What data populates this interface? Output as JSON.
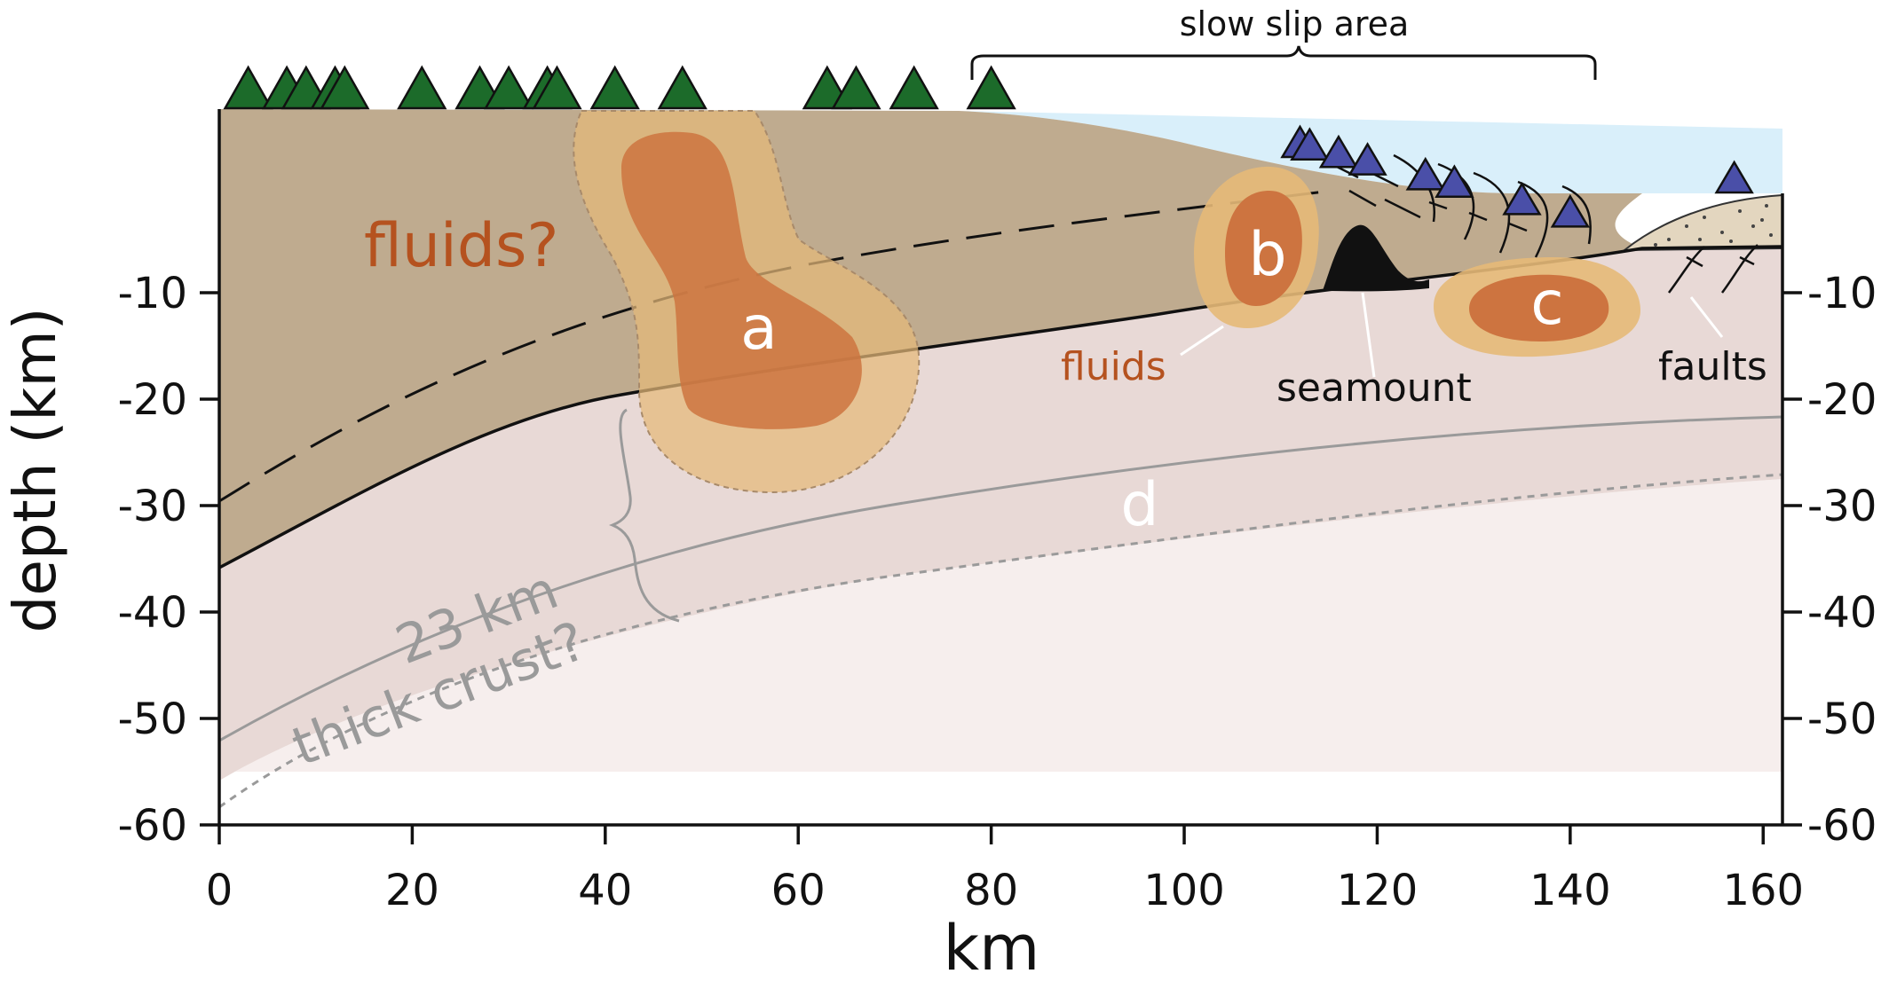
{
  "axes": {
    "x_label": "km",
    "y_label": "depth (km)",
    "x_ticks": [
      "0",
      "20",
      "40",
      "60",
      "80",
      "100",
      "120",
      "140",
      "160"
    ],
    "y_ticks_left": [
      "-10",
      "-20",
      "-30",
      "-40",
      "-50",
      "-60"
    ],
    "y_ticks_right": [
      "-10",
      "-20",
      "-30",
      "-40",
      "-50",
      "-60"
    ]
  },
  "annotations": {
    "slow_slip": "slow slip area",
    "fluids_q": "fluids?",
    "label_a": "a",
    "label_b": "b",
    "label_c": "c",
    "label_d": "d",
    "fluids": "fluids",
    "seamount": "seamount",
    "faults": "faults",
    "crust_line1": "23 km",
    "crust_line2": "thick crust?"
  },
  "colors": {
    "overriding_plate": "#bfab8f",
    "oceanic_crust": "#e8d9d6",
    "mantle": "#f6eeed",
    "ocean": "#d9effa",
    "fluid_core": "#cd7440",
    "fluid_halo": "#e5b978",
    "land_station": "#1c6b2a",
    "ocean_station": "#4a4fa8",
    "fluids_text": "#b5521f",
    "crust_text": "#9a9a9a"
  },
  "stations": {
    "land_km": [
      3,
      7,
      9,
      12,
      13,
      21,
      27,
      30,
      34,
      35,
      41,
      48,
      63,
      66,
      72,
      80
    ],
    "ocean_km": [
      112,
      113,
      116,
      119,
      125,
      128,
      135,
      140,
      157
    ]
  }
}
